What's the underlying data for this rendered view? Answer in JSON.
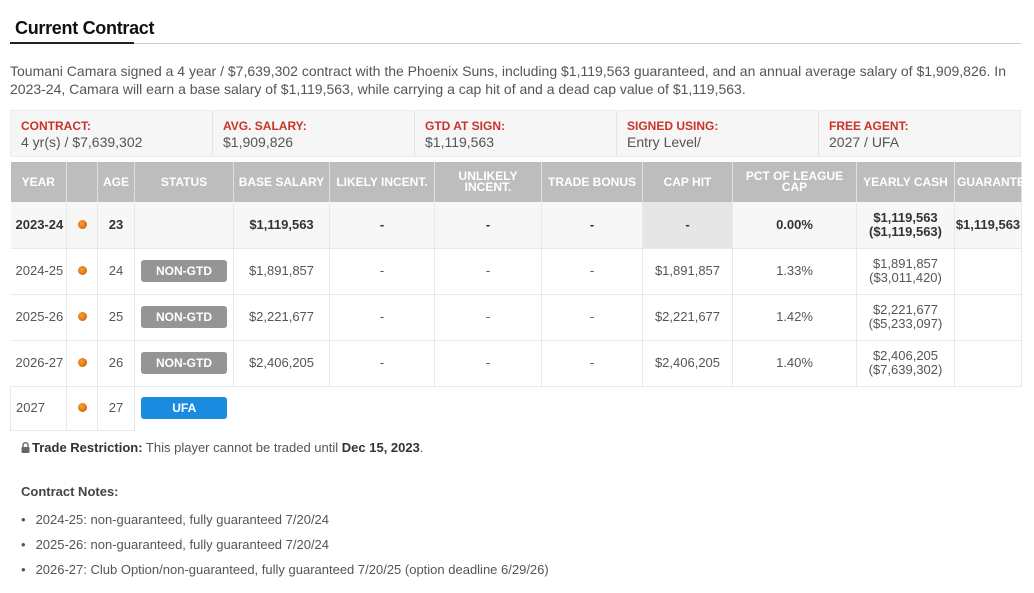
{
  "section": {
    "title": "Current Contract"
  },
  "summary_text": "Toumani Camara signed a 4 year / $7,639,302 contract with the Phoenix Suns, including $1,119,563 guaranteed, and an annual average salary of $1,909,826. In 2023-24, Camara will earn a base salary of $1,119,563, while carrying a cap hit of and a dead cap value of $1,119,563.",
  "summary_box": [
    {
      "label": "CONTRACT:",
      "value": "4 yr(s) / $7,639,302"
    },
    {
      "label": "AVG. SALARY:",
      "value": "$1,909,826"
    },
    {
      "label": "GTD AT SIGN:",
      "value": "$1,119,563"
    },
    {
      "label": "SIGNED USING:",
      "value": "Entry Level/"
    },
    {
      "label": "FREE AGENT:",
      "value": "2027 / UFA"
    }
  ],
  "table": {
    "headers": {
      "year": "YEAR",
      "age": "AGE",
      "status": "STATUS",
      "base_salary": "BASE SALARY",
      "likely_incent": "LIKELY INCENT.",
      "unlikely_incent": "UNLIKELY INCENT.",
      "trade_bonus": "TRADE BONUS",
      "cap_hit": "CAP HIT",
      "pct_league_cap": "PCT OF LEAGUE CAP",
      "yearly_cash": "YEARLY CASH",
      "guaranteed": "GUARANTEED"
    },
    "rows": [
      {
        "year": "2023-24",
        "age": "23",
        "status": "",
        "base_salary": "$1,119,563",
        "likely": "-",
        "unlikely": "-",
        "trade_bonus": "-",
        "cap_hit": "-",
        "pct": "0.00%",
        "cash": "$1,119,563",
        "cash_cum": "($1,119,563)",
        "guaranteed": "$1,119,563"
      },
      {
        "year": "2024-25",
        "age": "24",
        "status": "NON-GTD",
        "base_salary": "$1,891,857",
        "likely": "-",
        "unlikely": "-",
        "trade_bonus": "-",
        "cap_hit": "$1,891,857",
        "pct": "1.33%",
        "cash": "$1,891,857",
        "cash_cum": "($3,011,420)",
        "guaranteed": ""
      },
      {
        "year": "2025-26",
        "age": "25",
        "status": "NON-GTD",
        "base_salary": "$2,221,677",
        "likely": "-",
        "unlikely": "-",
        "trade_bonus": "-",
        "cap_hit": "$2,221,677",
        "pct": "1.42%",
        "cash": "$2,221,677",
        "cash_cum": "($5,233,097)",
        "guaranteed": ""
      },
      {
        "year": "2026-27",
        "age": "26",
        "status": "NON-GTD",
        "base_salary": "$2,406,205",
        "likely": "-",
        "unlikely": "-",
        "trade_bonus": "-",
        "cap_hit": "$2,406,205",
        "pct": "1.40%",
        "cash": "$2,406,205",
        "cash_cum": "($7,639,302)",
        "guaranteed": ""
      },
      {
        "year": "2027",
        "age": "27",
        "status": "UFA"
      }
    ],
    "team_icon": "suns-logo-icon"
  },
  "trade_restriction": {
    "label": "Trade Restriction:",
    "text": "This player cannot be traded until",
    "date": "Dec 15, 2023",
    "period": "."
  },
  "notes": {
    "title": "Contract Notes:",
    "items": [
      "2024-25: non-guaranteed, fully guaranteed 7/20/24",
      "2025-26: non-guaranteed, fully guaranteed 7/20/24",
      "2026-27: Club Option/non-guaranteed, fully guaranteed 7/20/25 (option deadline 6/29/26)"
    ]
  },
  "colors": {
    "label_red": "#c8332b",
    "header_grey": "#bdbdbd",
    "badge_grey": "#959595",
    "badge_blue": "#1a8be0"
  }
}
